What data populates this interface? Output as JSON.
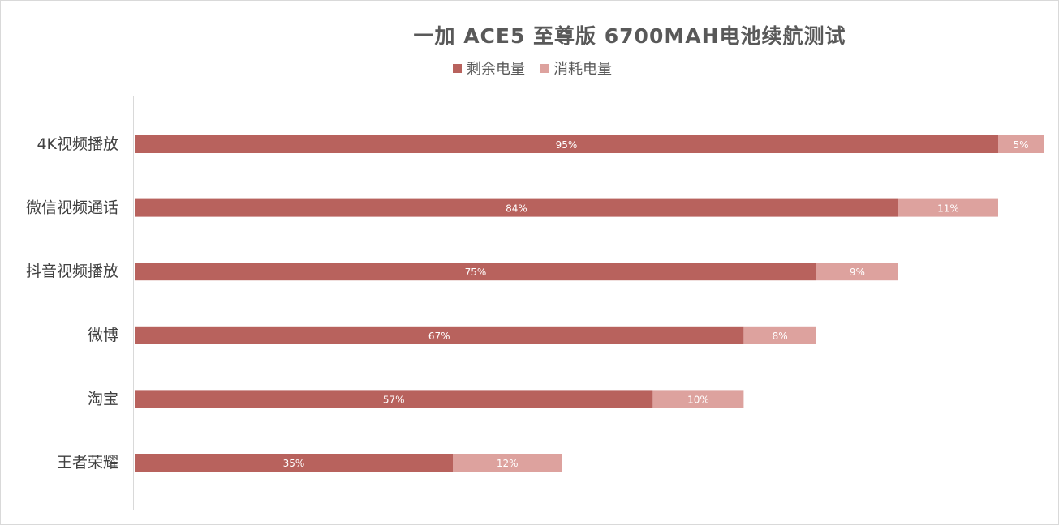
{
  "chart_data": {
    "type": "bar",
    "orientation": "horizontal",
    "stacked": true,
    "title": "一加 ACE5 至尊版 6700MAH电池续航测试",
    "xlabel": "",
    "ylabel": "",
    "xlim": [
      0,
      100
    ],
    "grid": false,
    "legend_position": "top",
    "categories": [
      "4K视频播放",
      "微信视频通话",
      "抖音视频播放",
      "微博",
      "淘宝",
      "王者荣耀"
    ],
    "series": [
      {
        "name": "剩余电量",
        "color": "#b8625d",
        "values": [
          95,
          84,
          75,
          67,
          57,
          35
        ],
        "labels": [
          "95%",
          "84%",
          "75%",
          "67%",
          "57%",
          "35%"
        ]
      },
      {
        "name": "消耗电量",
        "color": "#dda29e",
        "values": [
          5,
          11,
          9,
          8,
          10,
          12
        ],
        "labels": [
          "5%",
          "11%",
          "9%",
          "8%",
          "10%",
          "12%"
        ]
      }
    ]
  }
}
